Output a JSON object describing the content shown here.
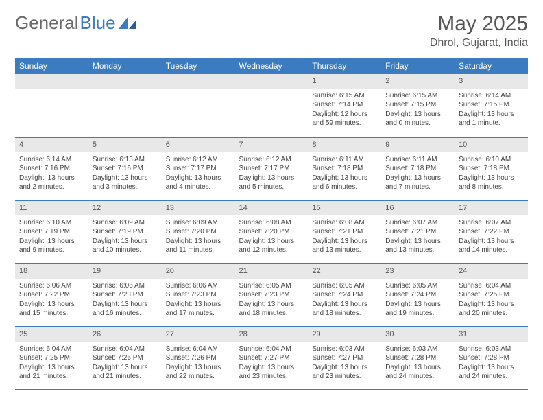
{
  "logo": {
    "text_gray": "General",
    "text_blue": "Blue"
  },
  "title": "May 2025",
  "location": "Dhrol, Gujarat, India",
  "colors": {
    "header_bg": "#3b7bbf",
    "header_text": "#ffffff",
    "daynum_bg": "#e8e8e8",
    "row_border": "#3b7bbf",
    "text": "#444444",
    "logo_gray": "#6b6b6b",
    "logo_blue": "#3b7bbf"
  },
  "days_of_week": [
    "Sunday",
    "Monday",
    "Tuesday",
    "Wednesday",
    "Thursday",
    "Friday",
    "Saturday"
  ],
  "weeks": [
    [
      null,
      null,
      null,
      null,
      {
        "n": "1",
        "sr": "Sunrise: 6:15 AM",
        "ss": "Sunset: 7:14 PM",
        "dl": "Daylight: 12 hours and 59 minutes."
      },
      {
        "n": "2",
        "sr": "Sunrise: 6:15 AM",
        "ss": "Sunset: 7:15 PM",
        "dl": "Daylight: 13 hours and 0 minutes."
      },
      {
        "n": "3",
        "sr": "Sunrise: 6:14 AM",
        "ss": "Sunset: 7:15 PM",
        "dl": "Daylight: 13 hours and 1 minute."
      }
    ],
    [
      {
        "n": "4",
        "sr": "Sunrise: 6:14 AM",
        "ss": "Sunset: 7:16 PM",
        "dl": "Daylight: 13 hours and 2 minutes."
      },
      {
        "n": "5",
        "sr": "Sunrise: 6:13 AM",
        "ss": "Sunset: 7:16 PM",
        "dl": "Daylight: 13 hours and 3 minutes."
      },
      {
        "n": "6",
        "sr": "Sunrise: 6:12 AM",
        "ss": "Sunset: 7:17 PM",
        "dl": "Daylight: 13 hours and 4 minutes."
      },
      {
        "n": "7",
        "sr": "Sunrise: 6:12 AM",
        "ss": "Sunset: 7:17 PM",
        "dl": "Daylight: 13 hours and 5 minutes."
      },
      {
        "n": "8",
        "sr": "Sunrise: 6:11 AM",
        "ss": "Sunset: 7:18 PM",
        "dl": "Daylight: 13 hours and 6 minutes."
      },
      {
        "n": "9",
        "sr": "Sunrise: 6:11 AM",
        "ss": "Sunset: 7:18 PM",
        "dl": "Daylight: 13 hours and 7 minutes."
      },
      {
        "n": "10",
        "sr": "Sunrise: 6:10 AM",
        "ss": "Sunset: 7:18 PM",
        "dl": "Daylight: 13 hours and 8 minutes."
      }
    ],
    [
      {
        "n": "11",
        "sr": "Sunrise: 6:10 AM",
        "ss": "Sunset: 7:19 PM",
        "dl": "Daylight: 13 hours and 9 minutes."
      },
      {
        "n": "12",
        "sr": "Sunrise: 6:09 AM",
        "ss": "Sunset: 7:19 PM",
        "dl": "Daylight: 13 hours and 10 minutes."
      },
      {
        "n": "13",
        "sr": "Sunrise: 6:09 AM",
        "ss": "Sunset: 7:20 PM",
        "dl": "Daylight: 13 hours and 11 minutes."
      },
      {
        "n": "14",
        "sr": "Sunrise: 6:08 AM",
        "ss": "Sunset: 7:20 PM",
        "dl": "Daylight: 13 hours and 12 minutes."
      },
      {
        "n": "15",
        "sr": "Sunrise: 6:08 AM",
        "ss": "Sunset: 7:21 PM",
        "dl": "Daylight: 13 hours and 13 minutes."
      },
      {
        "n": "16",
        "sr": "Sunrise: 6:07 AM",
        "ss": "Sunset: 7:21 PM",
        "dl": "Daylight: 13 hours and 13 minutes."
      },
      {
        "n": "17",
        "sr": "Sunrise: 6:07 AM",
        "ss": "Sunset: 7:22 PM",
        "dl": "Daylight: 13 hours and 14 minutes."
      }
    ],
    [
      {
        "n": "18",
        "sr": "Sunrise: 6:06 AM",
        "ss": "Sunset: 7:22 PM",
        "dl": "Daylight: 13 hours and 15 minutes."
      },
      {
        "n": "19",
        "sr": "Sunrise: 6:06 AM",
        "ss": "Sunset: 7:23 PM",
        "dl": "Daylight: 13 hours and 16 minutes."
      },
      {
        "n": "20",
        "sr": "Sunrise: 6:06 AM",
        "ss": "Sunset: 7:23 PM",
        "dl": "Daylight: 13 hours and 17 minutes."
      },
      {
        "n": "21",
        "sr": "Sunrise: 6:05 AM",
        "ss": "Sunset: 7:23 PM",
        "dl": "Daylight: 13 hours and 18 minutes."
      },
      {
        "n": "22",
        "sr": "Sunrise: 6:05 AM",
        "ss": "Sunset: 7:24 PM",
        "dl": "Daylight: 13 hours and 18 minutes."
      },
      {
        "n": "23",
        "sr": "Sunrise: 6:05 AM",
        "ss": "Sunset: 7:24 PM",
        "dl": "Daylight: 13 hours and 19 minutes."
      },
      {
        "n": "24",
        "sr": "Sunrise: 6:04 AM",
        "ss": "Sunset: 7:25 PM",
        "dl": "Daylight: 13 hours and 20 minutes."
      }
    ],
    [
      {
        "n": "25",
        "sr": "Sunrise: 6:04 AM",
        "ss": "Sunset: 7:25 PM",
        "dl": "Daylight: 13 hours and 21 minutes."
      },
      {
        "n": "26",
        "sr": "Sunrise: 6:04 AM",
        "ss": "Sunset: 7:26 PM",
        "dl": "Daylight: 13 hours and 21 minutes."
      },
      {
        "n": "27",
        "sr": "Sunrise: 6:04 AM",
        "ss": "Sunset: 7:26 PM",
        "dl": "Daylight: 13 hours and 22 minutes."
      },
      {
        "n": "28",
        "sr": "Sunrise: 6:04 AM",
        "ss": "Sunset: 7:27 PM",
        "dl": "Daylight: 13 hours and 23 minutes."
      },
      {
        "n": "29",
        "sr": "Sunrise: 6:03 AM",
        "ss": "Sunset: 7:27 PM",
        "dl": "Daylight: 13 hours and 23 minutes."
      },
      {
        "n": "30",
        "sr": "Sunrise: 6:03 AM",
        "ss": "Sunset: 7:28 PM",
        "dl": "Daylight: 13 hours and 24 minutes."
      },
      {
        "n": "31",
        "sr": "Sunrise: 6:03 AM",
        "ss": "Sunset: 7:28 PM",
        "dl": "Daylight: 13 hours and 24 minutes."
      }
    ]
  ]
}
